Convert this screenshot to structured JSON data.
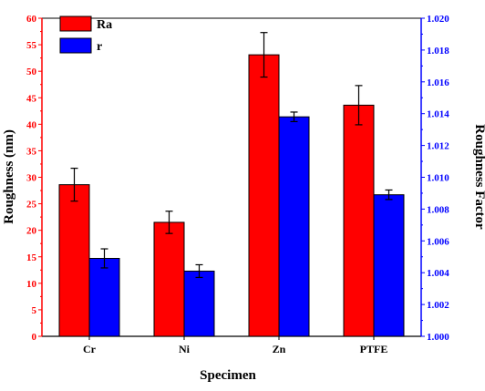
{
  "chart_data": {
    "type": "bar",
    "title": "",
    "xlabel": "Specimen",
    "ylabel": "Roughness (nm)",
    "y2label": "Roughness Factor",
    "categories": [
      "Cr",
      "Ni",
      "Zn",
      "PTFE"
    ],
    "ylim": [
      0,
      60
    ],
    "yticks": [
      "0",
      "5",
      "10",
      "15",
      "20",
      "25",
      "30",
      "35",
      "40",
      "45",
      "50",
      "55",
      "60"
    ],
    "y2lim": [
      1.0,
      1.02
    ],
    "y2ticks": [
      "1.000",
      "1.002",
      "1.004",
      "1.006",
      "1.008",
      "1.010",
      "1.012",
      "1.014",
      "1.016",
      "1.018",
      "1.020"
    ],
    "legend_position": "top-left",
    "series": [
      {
        "name": "Ra",
        "axis": "left",
        "color": "#ff0000",
        "values": [
          28.6,
          21.5,
          53.1,
          43.6
        ],
        "errors": [
          3.1,
          2.1,
          4.2,
          3.7
        ]
      },
      {
        "name": "r",
        "axis": "right",
        "color": "#0000ff",
        "values": [
          1.0049,
          1.0041,
          1.0138,
          1.0089
        ],
        "errors": [
          0.0006,
          0.0004,
          0.0003,
          0.0003
        ]
      }
    ],
    "left_axis_color": "#ff0000",
    "right_axis_color": "#0000ff",
    "grid": false
  }
}
